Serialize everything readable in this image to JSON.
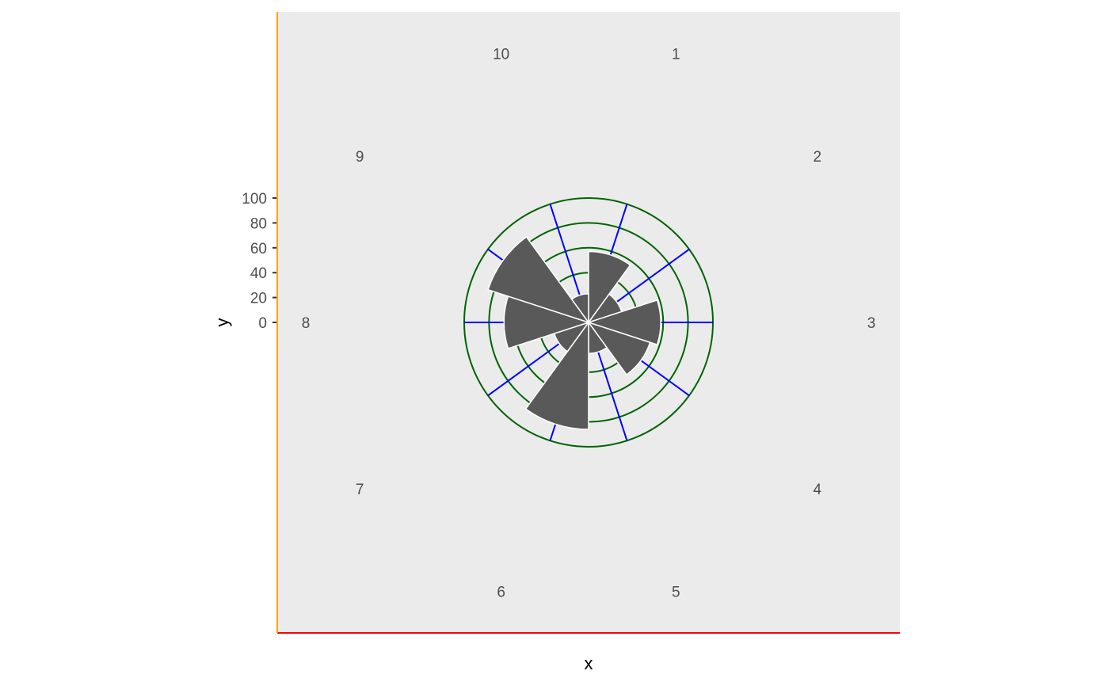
{
  "chart_data": {
    "type": "bar",
    "coord": "polar",
    "categories": [
      "1",
      "2",
      "3",
      "4",
      "5",
      "6",
      "7",
      "8",
      "9",
      "10"
    ],
    "values": [
      57,
      28,
      58,
      52,
      25,
      86,
      29,
      68,
      85,
      23
    ],
    "x_label": "x",
    "y_label": "y",
    "y_ticks": [
      "0",
      "20",
      "40",
      "60",
      "80",
      "100"
    ],
    "y_tick_values": [
      0,
      20,
      40,
      60,
      80,
      100
    ],
    "ylim": [
      0,
      100
    ],
    "grid_major_y": [
      20,
      40,
      60,
      80,
      100
    ],
    "grid": true,
    "legend": "none",
    "colors": {
      "panel_background": "#ebebeb",
      "bar_fill": "#595959",
      "bar_outline": "#ffffff",
      "grid_circles": "#006400",
      "grid_spokes": "#0000ff",
      "x_axis_line": "#ff0000",
      "y_axis_line": "#ffa500",
      "tick_text": "#4d4d4d",
      "title_text": "#000000"
    }
  }
}
